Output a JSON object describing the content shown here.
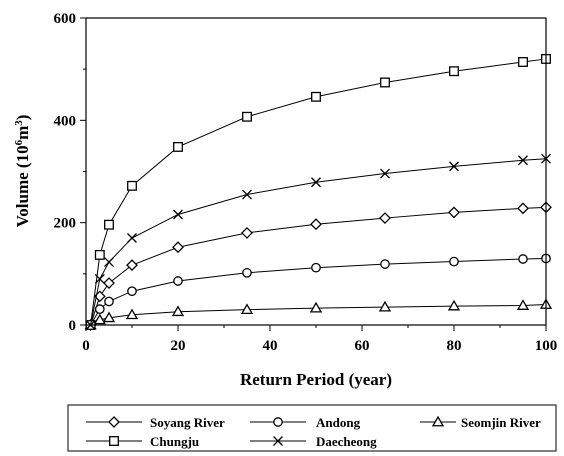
{
  "chart_data": {
    "type": "line",
    "xlabel": "Return Period (year)",
    "ylabel_main": "Volume (10",
    "ylabel_sup1": "6",
    "ylabel_mid": "m",
    "ylabel_sup2": "3",
    "ylabel_end": ")",
    "xlim": [
      0,
      100
    ],
    "ylim": [
      0,
      600
    ],
    "xticks": [
      0,
      20,
      40,
      60,
      80,
      100
    ],
    "yticks": [
      0,
      200,
      400,
      600
    ],
    "grid": false,
    "legend_position": "bottom",
    "x": [
      1,
      3,
      5,
      10,
      20,
      35,
      50,
      65,
      80,
      95,
      100
    ],
    "series": [
      {
        "name": "Soyang River",
        "marker": "diamond",
        "values": [
          0,
          56,
          82,
          117,
          152,
          180,
          197,
          209,
          220,
          228,
          230
        ]
      },
      {
        "name": "Andong",
        "marker": "circle",
        "values": [
          0,
          31,
          46,
          66,
          86,
          102,
          112,
          119,
          124,
          129,
          130
        ]
      },
      {
        "name": "Seomjin River",
        "marker": "triangle",
        "values": [
          0,
          10,
          14,
          20,
          26,
          30,
          33,
          35,
          37,
          38,
          40
        ]
      },
      {
        "name": "Chungju",
        "marker": "square",
        "values": [
          0,
          137,
          196,
          272,
          348,
          407,
          446,
          474,
          496,
          514,
          520
        ]
      },
      {
        "name": "Daecheong",
        "marker": "x",
        "values": [
          0,
          90,
          123,
          170,
          216,
          255,
          279,
          296,
          310,
          322,
          325
        ]
      }
    ]
  }
}
